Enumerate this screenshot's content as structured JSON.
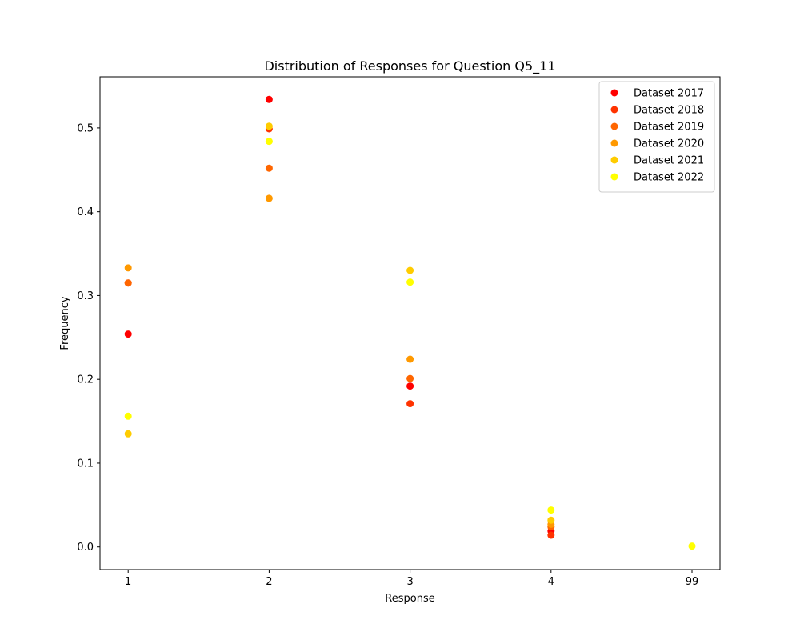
{
  "chart_data": {
    "type": "scatter",
    "title": "Distribution of Responses for Question Q5_11",
    "xlabel": "Response",
    "ylabel": "Frequency",
    "categories": [
      "1",
      "2",
      "3",
      "4",
      "99"
    ],
    "ylim": [
      -0.027,
      0.561
    ],
    "yticks": [
      "0.0",
      "0.1",
      "0.2",
      "0.3",
      "0.4",
      "0.5"
    ],
    "legend_position": "top-right",
    "grid": false,
    "series": [
      {
        "name": "Dataset 2017",
        "color": "#ff0000",
        "x": [
          "1",
          "2",
          "3",
          "4"
        ],
        "values": [
          0.254,
          0.534,
          0.192,
          0.019
        ]
      },
      {
        "name": "Dataset 2018",
        "color": "#ff3300",
        "x": [
          "1",
          "2",
          "3",
          "4"
        ],
        "values": [
          0.315,
          0.499,
          0.171,
          0.014
        ]
      },
      {
        "name": "Dataset 2019",
        "color": "#ff6600",
        "x": [
          "1",
          "2",
          "3",
          "4"
        ],
        "values": [
          0.315,
          0.452,
          0.201,
          0.024
        ]
      },
      {
        "name": "Dataset 2020",
        "color": "#ff9900",
        "x": [
          "1",
          "2",
          "3",
          "4"
        ],
        "values": [
          0.333,
          0.416,
          0.224,
          0.027
        ]
      },
      {
        "name": "Dataset 2021",
        "color": "#ffcc00",
        "x": [
          "1",
          "2",
          "3",
          "4"
        ],
        "values": [
          0.135,
          0.502,
          0.33,
          0.032
        ]
      },
      {
        "name": "Dataset 2022",
        "color": "#ffff00",
        "x": [
          "1",
          "2",
          "3",
          "4",
          "99"
        ],
        "values": [
          0.156,
          0.484,
          0.316,
          0.044,
          0.001
        ]
      }
    ]
  }
}
